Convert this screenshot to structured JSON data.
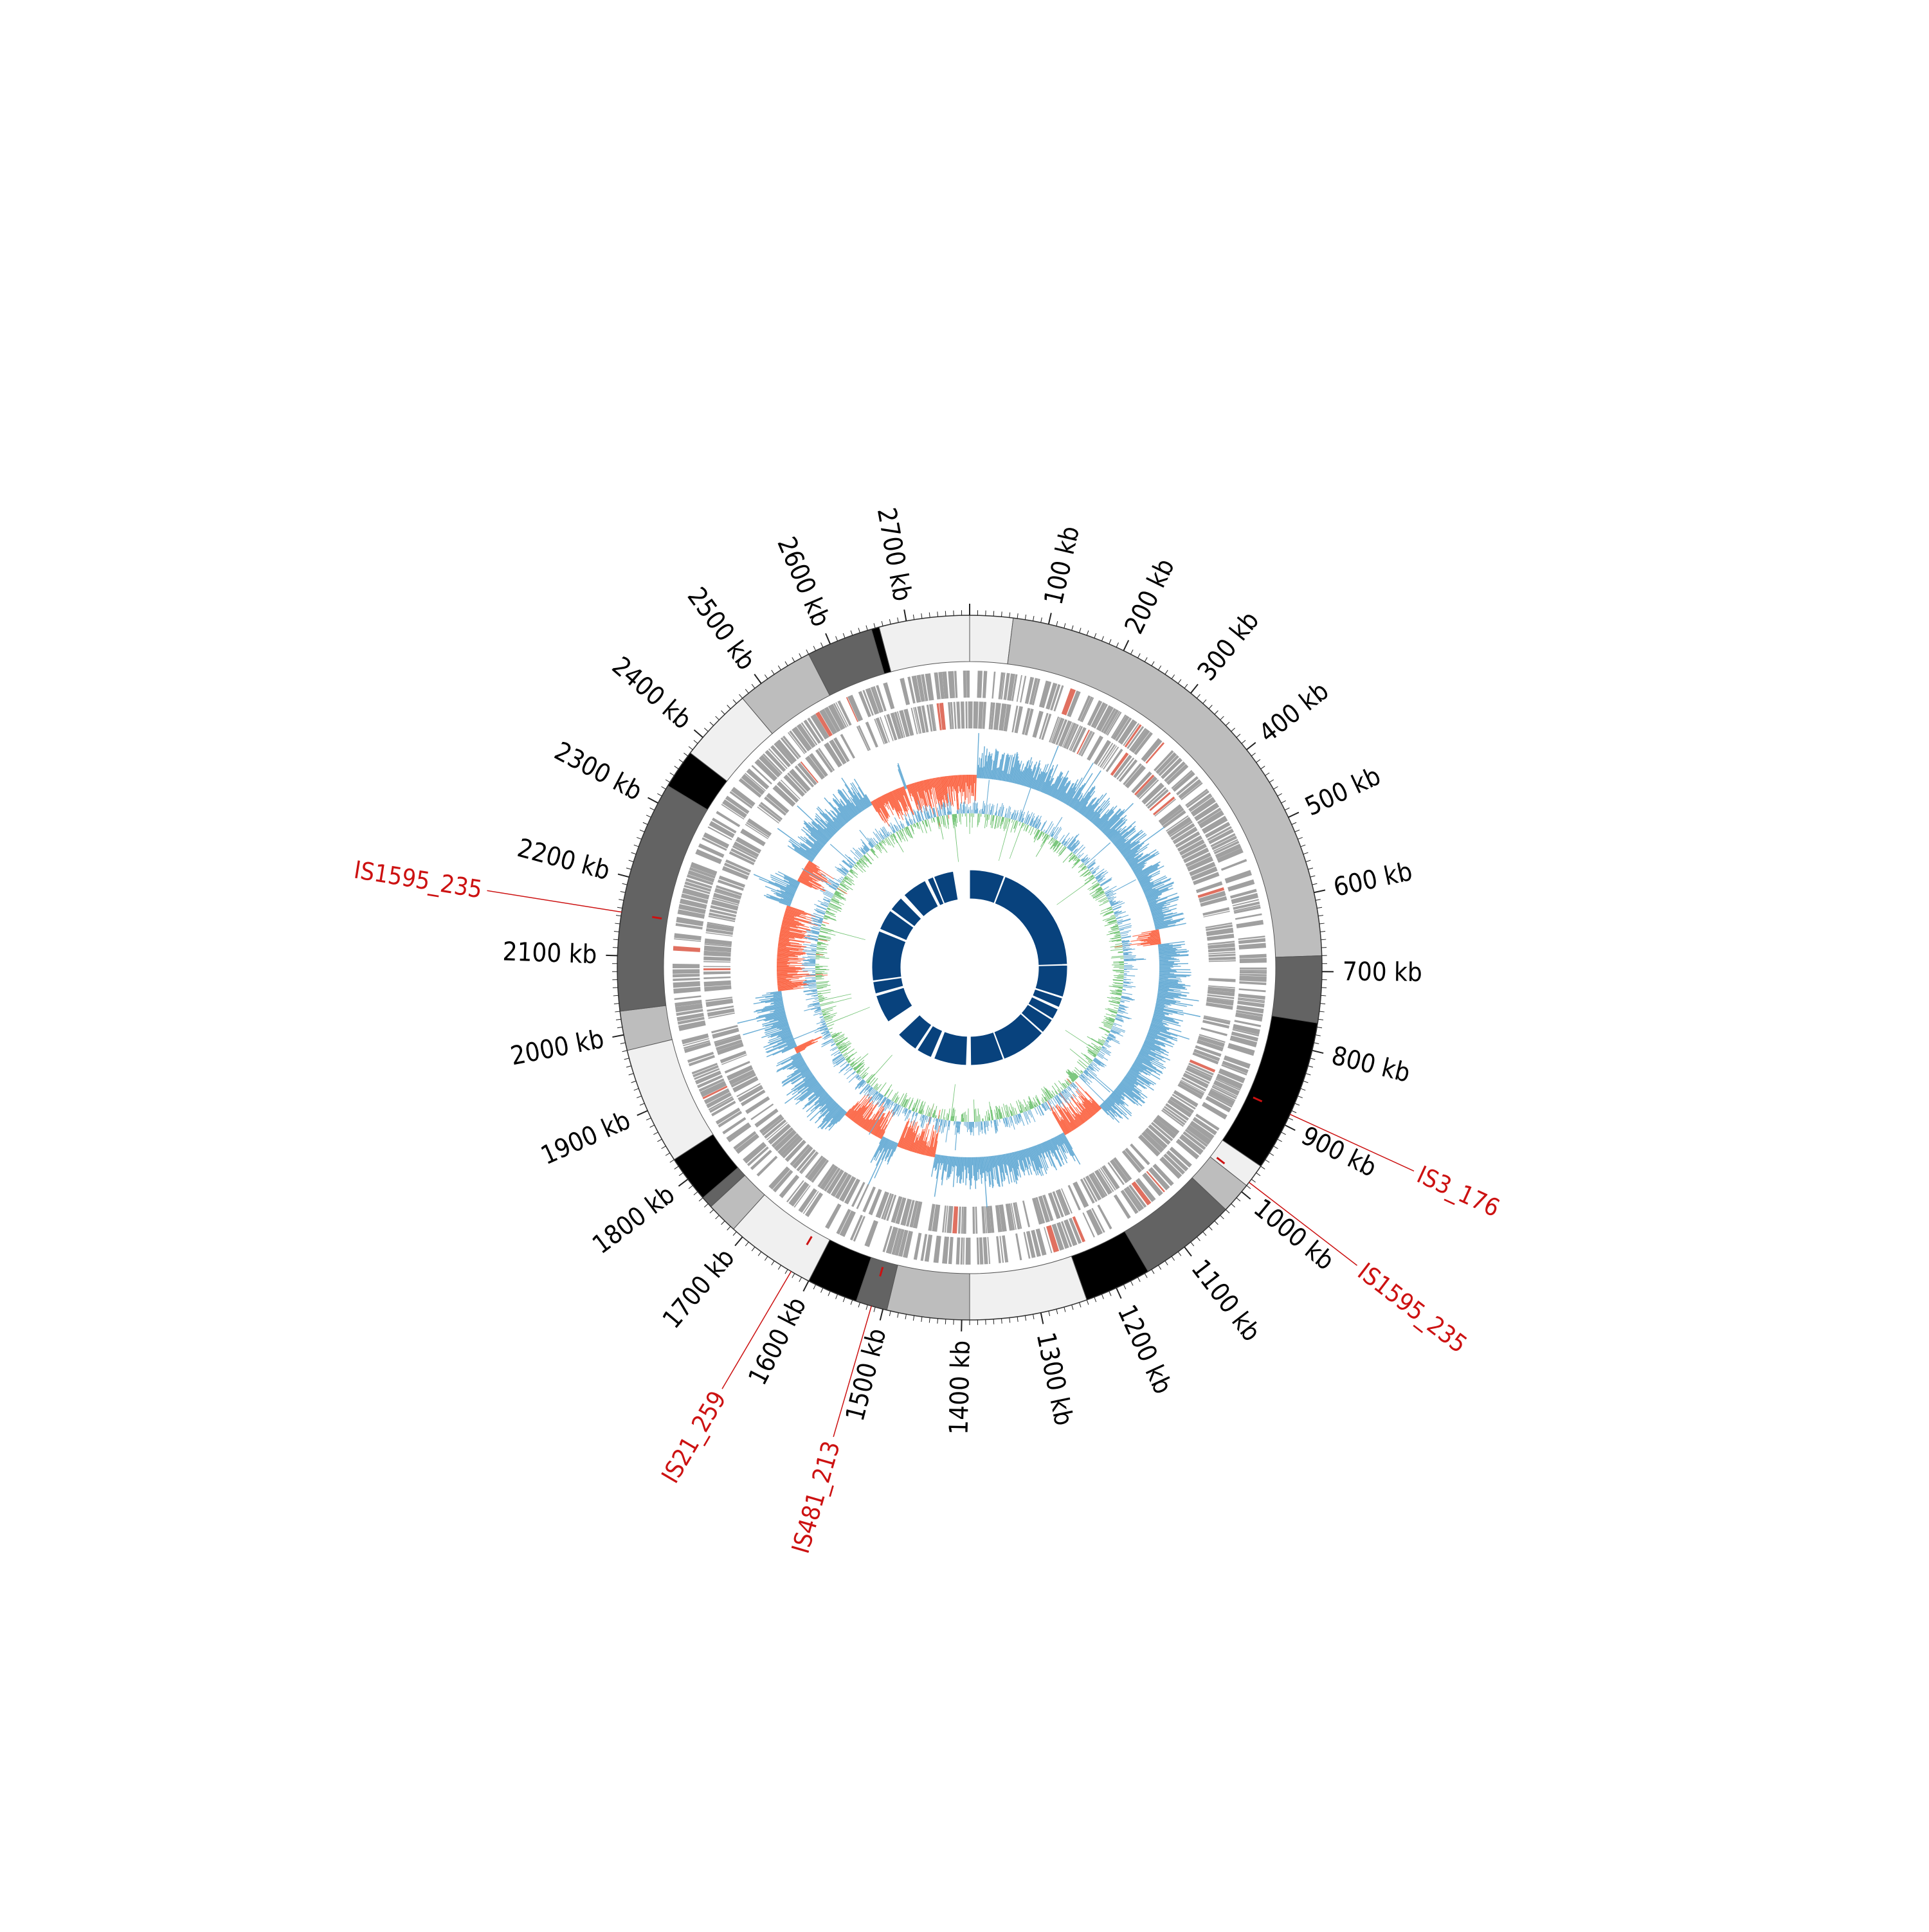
{
  "genome": {
    "length_kb": 2780,
    "tick_labels": [
      "100 kb",
      "200 kb",
      "300 kb",
      "400 kb",
      "500 kb",
      "600 kb",
      "700 kb",
      "800 kb",
      "900 kb",
      "1000 kb",
      "1100 kb",
      "1200 kb",
      "1300 kb",
      "1400 kb",
      "1500 kb",
      "1600 kb",
      "1700 kb",
      "1800 kb",
      "1900 kb",
      "2000 kb",
      "2100 kb",
      "2200 kb",
      "2300 kb",
      "2400 kb",
      "2500 kb",
      "2600 kb",
      "2700 kb"
    ],
    "tick_values_kb": [
      100,
      200,
      300,
      400,
      500,
      600,
      700,
      800,
      900,
      1000,
      1100,
      1200,
      1300,
      1400,
      1500,
      1600,
      1700,
      1800,
      1900,
      2000,
      2100,
      2200,
      2300,
      2400,
      2500,
      2600,
      2700
    ]
  },
  "contig_segments": [
    {
      "start": 0,
      "end": 55,
      "color": "#f0f0f0"
    },
    {
      "start": 55,
      "end": 680,
      "color": "#bdbdbd"
    },
    {
      "start": 680,
      "end": 765,
      "color": "#636363"
    },
    {
      "start": 765,
      "end": 960,
      "color": "#000000"
    },
    {
      "start": 960,
      "end": 990,
      "color": "#f0f0f0"
    },
    {
      "start": 990,
      "end": 1030,
      "color": "#bdbdbd"
    },
    {
      "start": 1030,
      "end": 1155,
      "color": "#636363"
    },
    {
      "start": 1155,
      "end": 1240,
      "color": "#000000"
    },
    {
      "start": 1240,
      "end": 1390,
      "color": "#f0f0f0"
    },
    {
      "start": 1390,
      "end": 1495,
      "color": "#bdbdbd"
    },
    {
      "start": 1495,
      "end": 1535,
      "color": "#636363"
    },
    {
      "start": 1535,
      "end": 1600,
      "color": "#000000"
    },
    {
      "start": 1600,
      "end": 1715,
      "color": "#f0f0f0"
    },
    {
      "start": 1715,
      "end": 1755,
      "color": "#bdbdbd"
    },
    {
      "start": 1755,
      "end": 1770,
      "color": "#636363"
    },
    {
      "start": 1770,
      "end": 1830,
      "color": "#000000"
    },
    {
      "start": 1830,
      "end": 1980,
      "color": "#f0f0f0"
    },
    {
      "start": 1980,
      "end": 2030,
      "color": "#bdbdbd"
    },
    {
      "start": 2030,
      "end": 2325,
      "color": "#636363"
    },
    {
      "start": 2325,
      "end": 2375,
      "color": "#000000"
    },
    {
      "start": 2375,
      "end": 2470,
      "color": "#f0f0f0"
    },
    {
      "start": 2470,
      "end": 2570,
      "color": "#bdbdbd"
    },
    {
      "start": 2570,
      "end": 2655,
      "color": "#636363"
    },
    {
      "start": 2655,
      "end": 2665,
      "color": "#000000"
    },
    {
      "start": 2665,
      "end": 2780,
      "color": "#f0f0f0"
    }
  ],
  "is_elements": [
    {
      "name": "IS1595_235",
      "position_kb": 2155
    },
    {
      "name": "IS3_176",
      "position_kb": 885
    },
    {
      "name": "IS1595_235",
      "position_kb": 985
    },
    {
      "name": "IS21_259",
      "position_kb": 1625
    },
    {
      "name": "IS481_213",
      "position_kb": 1515
    }
  ],
  "inner_blocks": [
    {
      "start": 0,
      "end": 160
    },
    {
      "start": 165,
      "end": 680
    },
    {
      "start": 684,
      "end": 830
    },
    {
      "start": 836,
      "end": 880
    },
    {
      "start": 890,
      "end": 940
    },
    {
      "start": 945,
      "end": 1015
    },
    {
      "start": 1020,
      "end": 1230
    },
    {
      "start": 1234,
      "end": 1385
    },
    {
      "start": 1405,
      "end": 1555
    },
    {
      "start": 1570,
      "end": 1640
    },
    {
      "start": 1650,
      "end": 1750
    },
    {
      "start": 1825,
      "end": 1955
    },
    {
      "start": 1965,
      "end": 2020
    },
    {
      "start": 2025,
      "end": 2255
    },
    {
      "start": 2265,
      "end": 2360
    },
    {
      "start": 2368,
      "end": 2435
    },
    {
      "start": 2455,
      "end": 2570
    },
    {
      "start": 2583,
      "end": 2610
    },
    {
      "start": 2614,
      "end": 2705
    }
  ],
  "colors": {
    "is_label": "#cc1111",
    "gc_skew_pos": "#6baed6",
    "gc_skew_neg": "#fb6a4a",
    "gc_content": "#74c476",
    "inner_blocks": "#08427d",
    "genes": "#a0a0a0",
    "gene_highlight": "#e07060"
  }
}
